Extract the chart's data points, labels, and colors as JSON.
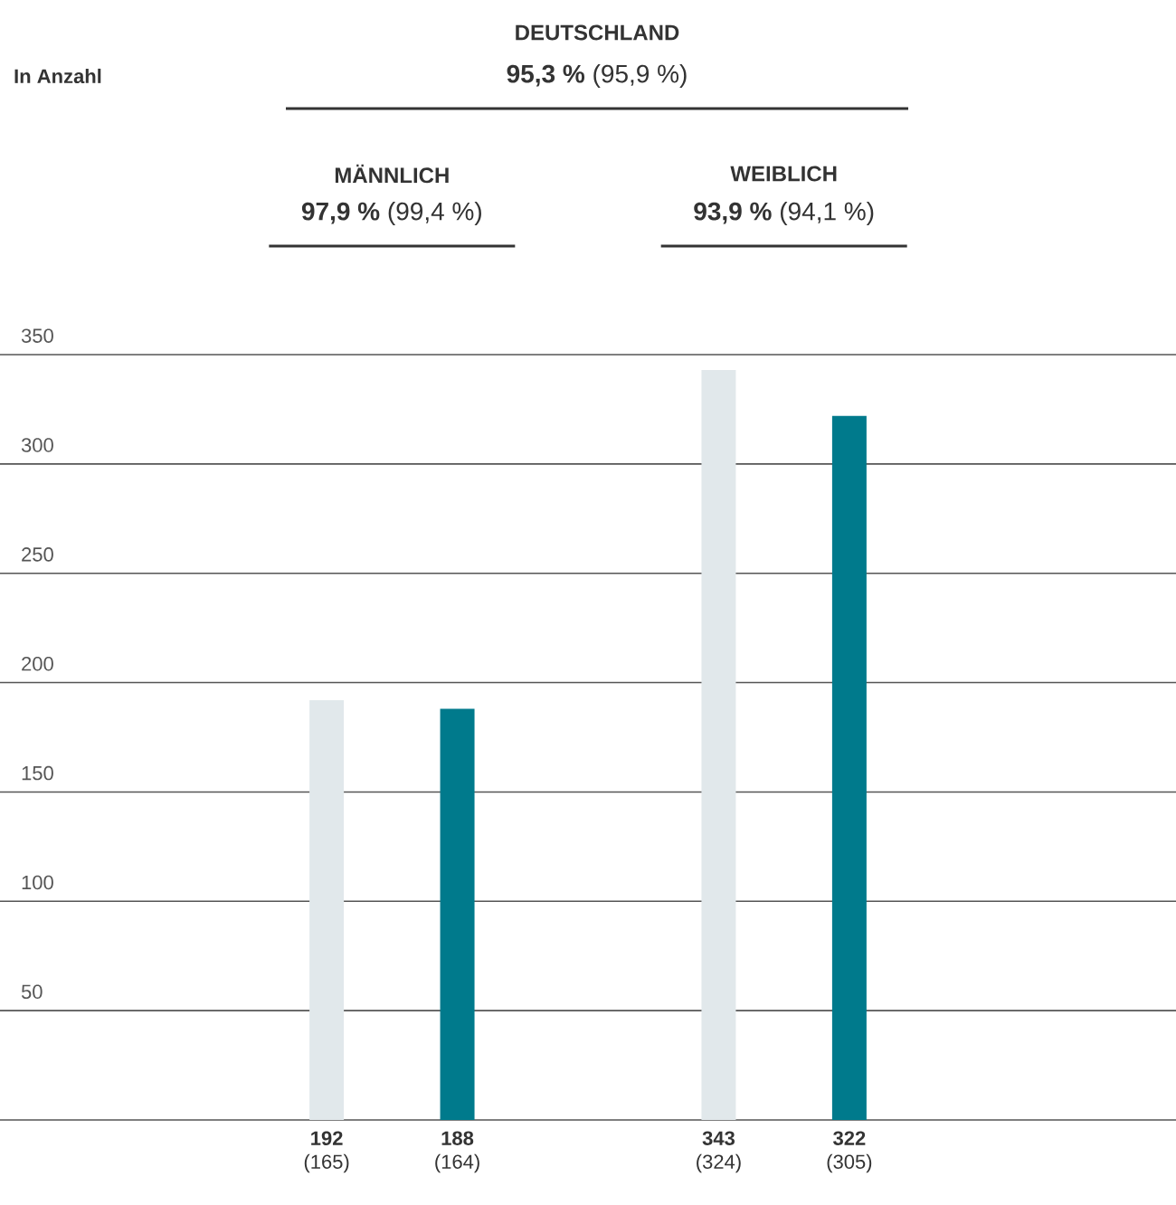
{
  "chart_data": {
    "type": "bar",
    "title": "DEUTSCHLAND",
    "subtitle": "**95,3 %** (95,9 %)",
    "categories": [
      null,
      null,
      null,
      null,
      null,
      null,
      null,
      null,
      null
    ],
    "values": [
      null,
      null,
      192,
      188,
      null,
      343,
      322,
      null,
      null
    ],
    "colors": [
      null,
      null,
      "#e1e8eb",
      "#007a8c",
      null,
      "#e1e8eb",
      "#007a8c",
      null,
      null
    ],
    "value_labels": [
      null,
      null,
      "**192** (165)",
      "**188** (164)",
      null,
      "**343** (324)",
      "**322** (305)",
      null,
      null
    ],
    "annotations": [
      "In Anzahl",
      "MÄNNLICH",
      "**97,9 %** (99,4 %)",
      "WEIBLICH",
      "**93,9 %** (94,1 %)"
    ],
    "ylim": [
      0,
      350
    ],
    "yticks": [
      50,
      100,
      150,
      200,
      250,
      300,
      350
    ],
    "grid": "y"
  }
}
